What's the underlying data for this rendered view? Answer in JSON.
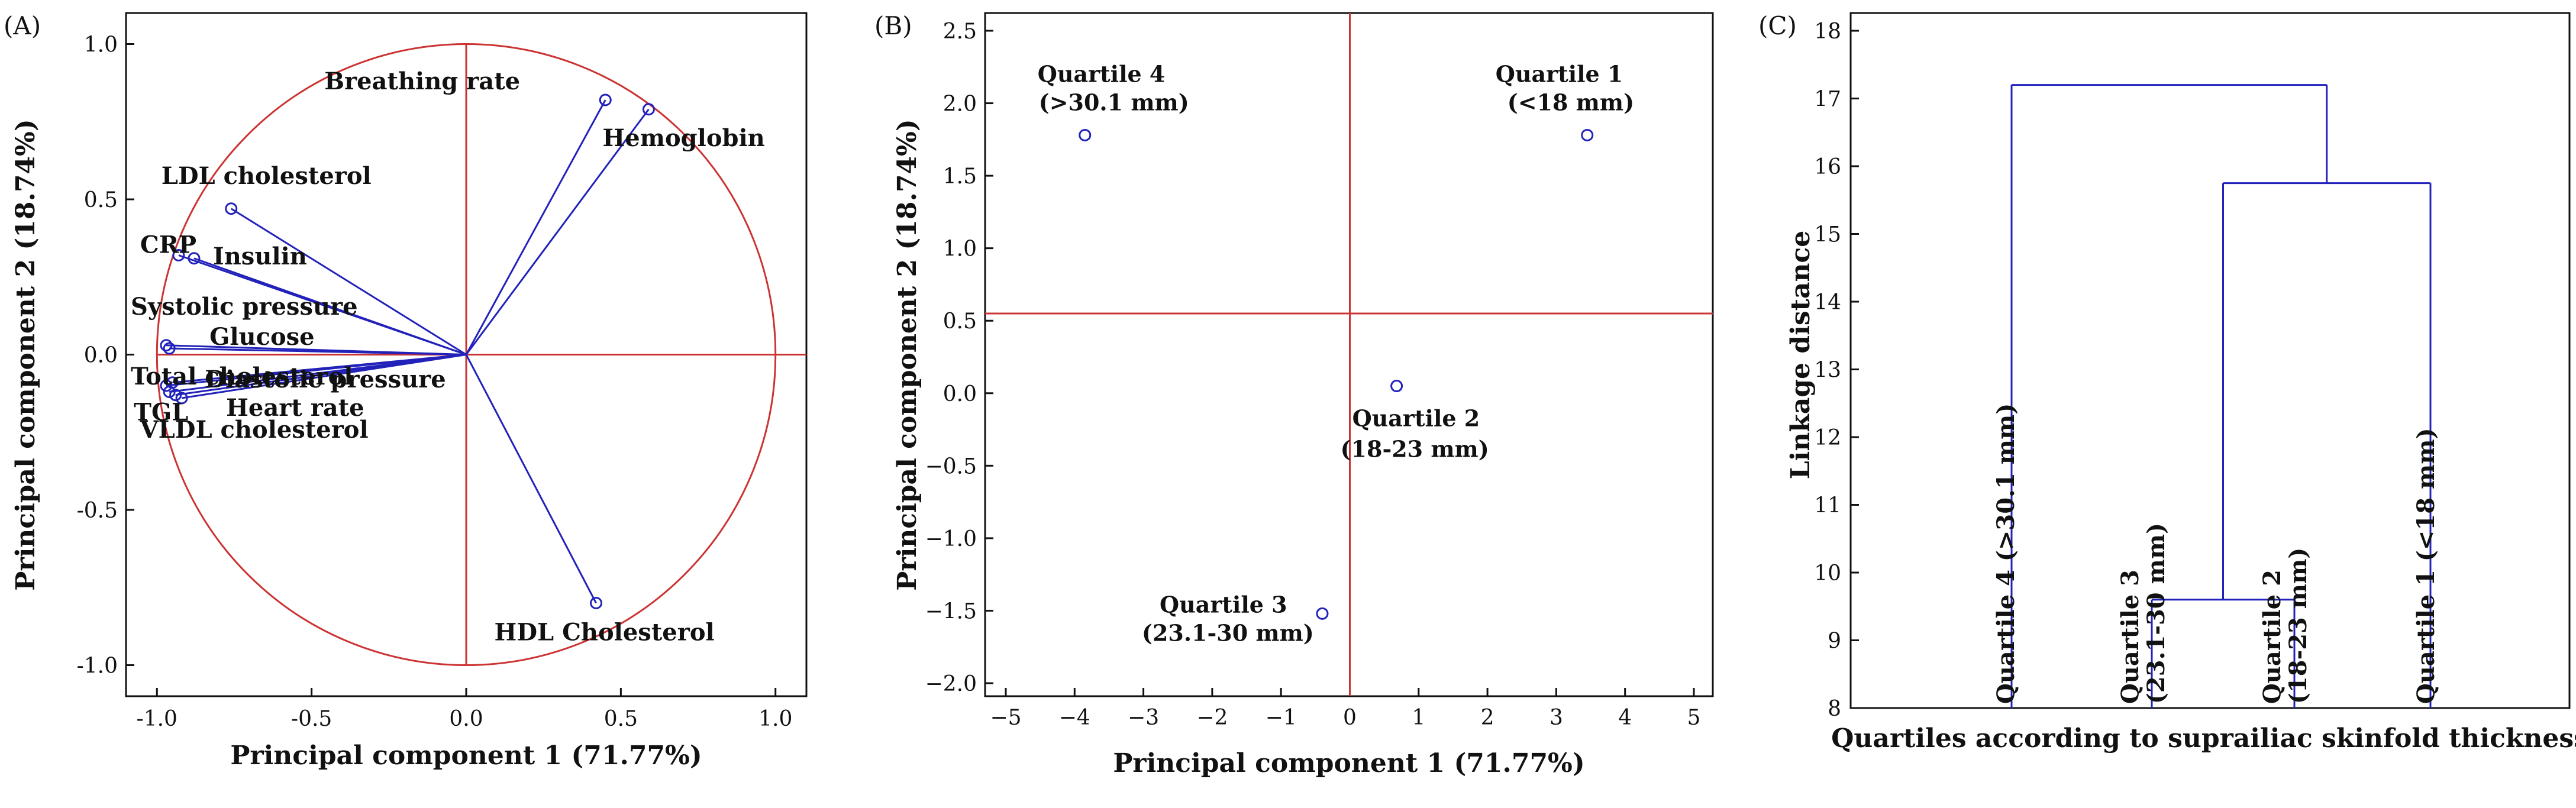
{
  "chart_data": [
    {
      "type": "scatter",
      "panel_label": "(A)",
      "xlabel": "Principal component 1 (71.77%)",
      "ylabel": "Principal component 2 (18.74%)",
      "xlim": [
        -1.1,
        1.1
      ],
      "ylim": [
        -1.1,
        1.1
      ],
      "xticks": [
        "-1.0",
        "-0.5",
        "0.0",
        "0.5",
        "1.0"
      ],
      "yticks": [
        "-1.0",
        "-0.5",
        "0.0",
        "0.5",
        "1.0"
      ],
      "unit_circle": true,
      "colors": {
        "vectors": "#2222bb",
        "circle_axes": "#cc3333"
      },
      "points": [
        {
          "label": "Breathing rate",
          "x": 0.45,
          "y": 0.82
        },
        {
          "label": "Hemoglobin",
          "x": 0.59,
          "y": 0.79
        },
        {
          "label": "LDL cholesterol",
          "x": -0.76,
          "y": 0.47
        },
        {
          "label": "CRP",
          "x": -0.93,
          "y": 0.32
        },
        {
          "label": "Insulin",
          "x": -0.88,
          "y": 0.31
        },
        {
          "label": "Systolic pressure",
          "x": -0.97,
          "y": 0.03
        },
        {
          "label": "Glucose",
          "x": -0.96,
          "y": 0.02
        },
        {
          "label": "Total cholesterol",
          "x": -0.97,
          "y": -0.1
        },
        {
          "label": "TGL",
          "x": -0.96,
          "y": -0.12
        },
        {
          "label": "Diastolic pressure",
          "x": -0.95,
          "y": -0.09
        },
        {
          "label": "Heart rate",
          "x": -0.92,
          "y": -0.14
        },
        {
          "label": "VLDL cholesterol",
          "x": -0.94,
          "y": -0.13
        },
        {
          "label": "HDL Cholesterol",
          "x": 0.42,
          "y": -0.8
        }
      ]
    },
    {
      "type": "scatter",
      "panel_label": "(B)",
      "xlabel": "Principal component 1 (71.77%)",
      "ylabel": "Principal component 2 (18.74%)",
      "xlim": [
        -5,
        5
      ],
      "ylim": [
        -2.1,
        2.6
      ],
      "xticks": [
        "−5",
        "−4",
        "−3",
        "−2",
        "−1",
        "0",
        "1",
        "2",
        "3",
        "4",
        "5"
      ],
      "yticks": [
        "−2.0",
        "−1.5",
        "−1.0",
        "−0.5",
        "0.0",
        "0.5",
        "1.0",
        "1.5",
        "2.0",
        "2.5"
      ],
      "reference_lines": {
        "x": 0.0,
        "y": 0.55
      },
      "colors": {
        "points": "#2222bb",
        "reference": "#cc3333"
      },
      "points": [
        {
          "label": "Quartile 4",
          "sublabel": "(>30.1 mm)",
          "x": -3.85,
          "y": 1.78
        },
        {
          "label": "Quartile 1",
          "sublabel": "(<18 mm)",
          "x": 3.45,
          "y": 1.78
        },
        {
          "label": "Quartile 2",
          "sublabel": "(18-23 mm)",
          "x": 0.68,
          "y": 0.05
        },
        {
          "label": "Quartile 3",
          "sublabel": "(23.1-30 mm)",
          "x": -0.4,
          "y": -1.52
        }
      ]
    },
    {
      "type": "dendrogram",
      "panel_label": "(C)",
      "xlabel": "Quartiles according to suprailiac skinfold thickness",
      "ylabel": "Linkage distance",
      "ylim": [
        8,
        18
      ],
      "yticks": [
        "8",
        "9",
        "10",
        "11",
        "12",
        "13",
        "14",
        "15",
        "16",
        "17",
        "18"
      ],
      "colors": {
        "links": "#2222bb"
      },
      "leaves": [
        "Quartile 4 (>30.1 mm)",
        "Quartile 3 (23.1-30 mm)",
        "Quartile 2 (18-23 mm)",
        "Quartile 1 (<18 mm)"
      ],
      "merges": [
        {
          "left": "Quartile 3 (23.1-30 mm)",
          "right": "Quartile 2 (18-23 mm)",
          "height": 9.6
        },
        {
          "left": "Quartile 3 + Quartile 2",
          "right": "Quartile 1 (<18 mm)",
          "height": 15.75
        },
        {
          "left": "Quartile 4 (>30.1 mm)",
          "right": "Quartile 3 + Quartile 2 + Quartile 1",
          "height": 17.2
        }
      ]
    }
  ]
}
